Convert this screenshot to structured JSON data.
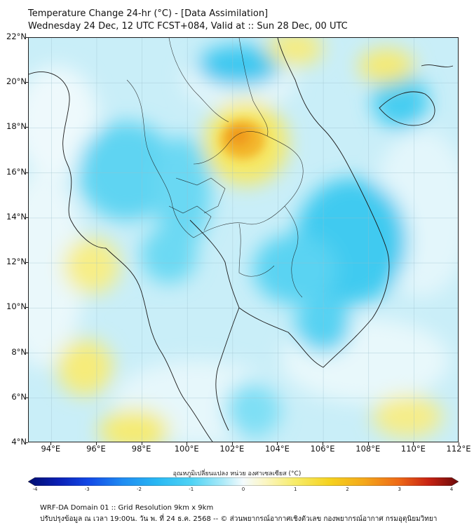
{
  "title_line1": "Temperature Change 24-hr (°C) - [Data Assimilation]",
  "title_line2": "Wednesday 24 Dec, 12 UTC FCST+084, Valid at :: Sun 28 Dec, 00 UTC",
  "map": {
    "lat_labels": [
      "22°N",
      "20°N",
      "18°N",
      "16°N",
      "14°N",
      "12°N",
      "10°N",
      "8°N",
      "6°N",
      "4°N"
    ],
    "lon_labels": [
      "94°E",
      "96°E",
      "98°E",
      "100°E",
      "102°E",
      "104°E",
      "106°E",
      "108°E",
      "110°E",
      "112°E"
    ],
    "lat_range": [
      4,
      22
    ],
    "lon_range": [
      93,
      112
    ],
    "colors": {
      "land_border": "#1a1a1a",
      "cold": "#1ec8ef",
      "neutral": "#f4fbfd",
      "warm": "#f5e43a",
      "hot": "#f3a31a"
    }
  },
  "colorbar": {
    "label": "อุณหภูมิเปลี่ยนแปลง หน่วย องศาเซลเซียส (°C)",
    "ticks": [
      "-4",
      "-3",
      "-2",
      "-1",
      "0",
      "1",
      "2",
      "3",
      "4"
    ],
    "min": -4,
    "max": 4
  },
  "footer_line1": "WRF-DA Domain 01 :: Grid Resolution 9km x 9km",
  "footer_line2": "ปรับปรุงข้อมูล ณ เวลา 19:00น. วัน พ. ที่ 24 ธ.ค. 2568 -- © ส่วนพยากรณ์อากาศเชิงตัวเลข กองพยากรณ์อากาศ กรมอุตุนิยมวิทยา"
}
